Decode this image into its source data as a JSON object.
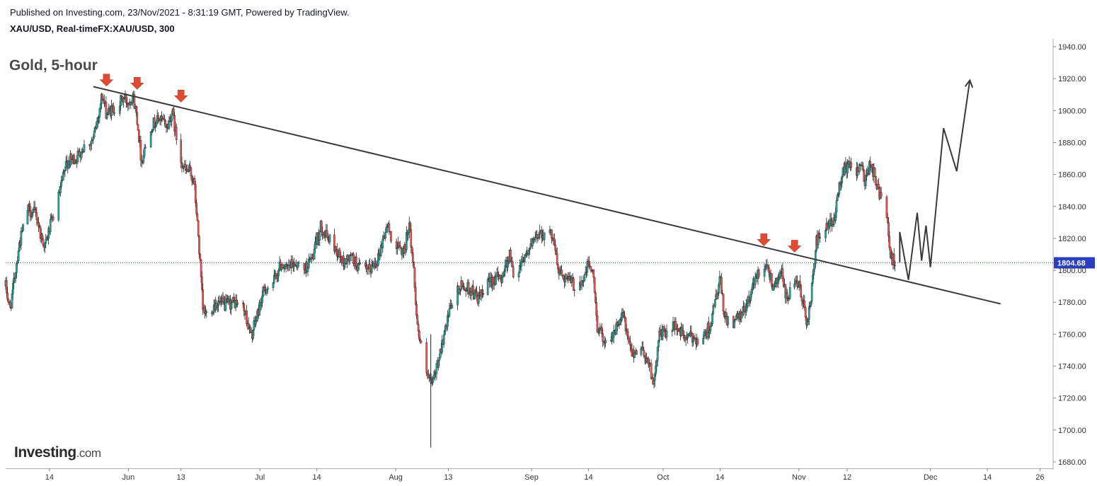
{
  "header": {
    "published": "Published on Investing.com, 23/Nov/2021 - 8:31:19 GMT, Powered by TradingView.",
    "symbol": "XAU/USD, Real-timeFX:XAU/USD, 300"
  },
  "logo": {
    "brand": "Investing",
    "suffix": ".com"
  },
  "colors": {
    "up": "#26a69a",
    "down": "#ef5350",
    "arrow": "#e24a33",
    "trend": "#3a3a3a",
    "price_line": "#2a3fbf"
  },
  "chart_data": {
    "type": "candlestick",
    "title": "Gold, 5-hour",
    "y_axis": {
      "position": "right",
      "range": [
        1676,
        1944
      ],
      "ticks": [
        1680.0,
        1700.0,
        1720.0,
        1740.0,
        1760.0,
        1780.0,
        1800.0,
        1820.0,
        1840.0,
        1860.0,
        1880.0,
        1900.0,
        1920.0,
        1940.0
      ]
    },
    "x_axis": {
      "start": "2021-05-04",
      "end": "2021-12-29",
      "ticks": [
        {
          "label": "14",
          "date": "2021-05-14"
        },
        {
          "label": "Jun",
          "date": "2021-06-01"
        },
        {
          "label": "13",
          "date": "2021-06-13"
        },
        {
          "label": "Jul",
          "date": "2021-07-01"
        },
        {
          "label": "14",
          "date": "2021-07-14"
        },
        {
          "label": "Aug",
          "date": "2021-08-01"
        },
        {
          "label": "13",
          "date": "2021-08-13"
        },
        {
          "label": "Sep",
          "date": "2021-09-01"
        },
        {
          "label": "14",
          "date": "2021-09-14"
        },
        {
          "label": "Oct",
          "date": "2021-10-01"
        },
        {
          "label": "14",
          "date": "2021-10-14"
        },
        {
          "label": "Nov",
          "date": "2021-11-01"
        },
        {
          "label": "12",
          "date": "2021-11-12"
        },
        {
          "label": "Dec",
          "date": "2021-12-01"
        },
        {
          "label": "14",
          "date": "2021-12-14"
        },
        {
          "label": "26",
          "date": "2021-12-26"
        }
      ]
    },
    "last_price": 1804.68,
    "last_price_label": "1804.68",
    "price_path": [
      [
        "2021-05-04",
        1790
      ],
      [
        "2021-05-05",
        1775
      ],
      [
        "2021-05-07",
        1815
      ],
      [
        "2021-05-09",
        1838
      ],
      [
        "2021-05-11",
        1835
      ],
      [
        "2021-05-12",
        1822
      ],
      [
        "2021-05-13",
        1815
      ],
      [
        "2021-05-14",
        1826
      ],
      [
        "2021-05-16",
        1845
      ],
      [
        "2021-05-18",
        1868
      ],
      [
        "2021-05-20",
        1870
      ],
      [
        "2021-05-22",
        1878
      ],
      [
        "2021-05-24",
        1882
      ],
      [
        "2021-05-25",
        1895
      ],
      [
        "2021-05-26",
        1910
      ],
      [
        "2021-05-27",
        1898
      ],
      [
        "2021-05-28",
        1900
      ],
      [
        "2021-05-30",
        1905
      ],
      [
        "2021-05-31",
        1908
      ],
      [
        "2021-06-01",
        1905
      ],
      [
        "2021-06-02",
        1910
      ],
      [
        "2021-06-03",
        1895
      ],
      [
        "2021-06-04",
        1868
      ],
      [
        "2021-06-06",
        1890
      ],
      [
        "2021-06-08",
        1895
      ],
      [
        "2021-06-10",
        1890
      ],
      [
        "2021-06-11",
        1900
      ],
      [
        "2021-06-12",
        1882
      ],
      [
        "2021-06-13",
        1870
      ],
      [
        "2021-06-14",
        1862
      ],
      [
        "2021-06-15",
        1862
      ],
      [
        "2021-06-16",
        1855
      ],
      [
        "2021-06-17",
        1820
      ],
      [
        "2021-06-18",
        1775
      ],
      [
        "2021-06-19",
        1772
      ],
      [
        "2021-06-21",
        1780
      ],
      [
        "2021-06-23",
        1778
      ],
      [
        "2021-06-25",
        1780
      ],
      [
        "2021-06-27",
        1778
      ],
      [
        "2021-06-28",
        1770
      ],
      [
        "2021-06-29",
        1758
      ],
      [
        "2021-06-30",
        1768
      ],
      [
        "2021-07-02",
        1788
      ],
      [
        "2021-07-04",
        1792
      ],
      [
        "2021-07-06",
        1805
      ],
      [
        "2021-07-07",
        1800
      ],
      [
        "2021-07-09",
        1805
      ],
      [
        "2021-07-11",
        1800
      ],
      [
        "2021-07-13",
        1808
      ],
      [
        "2021-07-15",
        1828
      ],
      [
        "2021-07-16",
        1822
      ],
      [
        "2021-07-18",
        1815
      ],
      [
        "2021-07-19",
        1810
      ],
      [
        "2021-07-20",
        1805
      ],
      [
        "2021-07-22",
        1808
      ],
      [
        "2021-07-24",
        1800
      ],
      [
        "2021-07-26",
        1800
      ],
      [
        "2021-07-28",
        1808
      ],
      [
        "2021-07-30",
        1828
      ],
      [
        "2021-08-01",
        1815
      ],
      [
        "2021-08-03",
        1812
      ],
      [
        "2021-08-04",
        1830
      ],
      [
        "2021-08-05",
        1804
      ],
      [
        "2021-08-06",
        1764
      ],
      [
        "2021-08-07",
        1748
      ],
      [
        "2021-08-08",
        1735
      ],
      [
        "2021-08-09",
        1728
      ],
      [
        "2021-08-10",
        1735
      ],
      [
        "2021-08-11",
        1748
      ],
      [
        "2021-08-12",
        1758
      ],
      [
        "2021-08-14",
        1782
      ],
      [
        "2021-08-16",
        1790
      ],
      [
        "2021-08-18",
        1788
      ],
      [
        "2021-08-20",
        1782
      ],
      [
        "2021-08-23",
        1795
      ],
      [
        "2021-08-25",
        1795
      ],
      [
        "2021-08-27",
        1810
      ],
      [
        "2021-08-28",
        1795
      ],
      [
        "2021-08-30",
        1808
      ],
      [
        "2021-09-01",
        1815
      ],
      [
        "2021-09-03",
        1825
      ],
      [
        "2021-09-04",
        1822
      ],
      [
        "2021-09-06",
        1822
      ],
      [
        "2021-09-07",
        1800
      ],
      [
        "2021-09-09",
        1795
      ],
      [
        "2021-09-11",
        1790
      ],
      [
        "2021-09-13",
        1795
      ],
      [
        "2021-09-14",
        1805
      ],
      [
        "2021-09-15",
        1798
      ],
      [
        "2021-09-16",
        1765
      ],
      [
        "2021-09-18",
        1755
      ],
      [
        "2021-09-20",
        1762
      ],
      [
        "2021-09-22",
        1772
      ],
      [
        "2021-09-23",
        1755
      ],
      [
        "2021-09-24",
        1748
      ],
      [
        "2021-09-26",
        1752
      ],
      [
        "2021-09-28",
        1740
      ],
      [
        "2021-09-29",
        1727
      ],
      [
        "2021-09-30",
        1760
      ],
      [
        "2021-10-02",
        1762
      ],
      [
        "2021-10-04",
        1765
      ],
      [
        "2021-10-06",
        1758
      ],
      [
        "2021-10-08",
        1758
      ],
      [
        "2021-10-10",
        1756
      ],
      [
        "2021-10-12",
        1768
      ],
      [
        "2021-10-14",
        1795
      ],
      [
        "2021-10-15",
        1770
      ],
      [
        "2021-10-17",
        1767
      ],
      [
        "2021-10-19",
        1772
      ],
      [
        "2021-10-21",
        1785
      ],
      [
        "2021-10-22",
        1795
      ],
      [
        "2021-10-24",
        1805
      ],
      [
        "2021-10-25",
        1802
      ],
      [
        "2021-10-26",
        1790
      ],
      [
        "2021-10-27",
        1795
      ],
      [
        "2021-10-28",
        1800
      ],
      [
        "2021-10-29",
        1782
      ],
      [
        "2021-10-31",
        1790
      ],
      [
        "2021-11-01",
        1790
      ],
      [
        "2021-11-02",
        1780
      ],
      [
        "2021-11-03",
        1765
      ],
      [
        "2021-11-04",
        1790
      ],
      [
        "2021-11-05",
        1818
      ],
      [
        "2021-11-07",
        1825
      ],
      [
        "2021-11-08",
        1828
      ],
      [
        "2021-11-09",
        1830
      ],
      [
        "2021-11-10",
        1850
      ],
      [
        "2021-11-11",
        1862
      ],
      [
        "2021-11-12",
        1865
      ],
      [
        "2021-11-14",
        1862
      ],
      [
        "2021-11-15",
        1868
      ],
      [
        "2021-11-16",
        1855
      ],
      [
        "2021-11-17",
        1865
      ],
      [
        "2021-11-18",
        1862
      ],
      [
        "2021-11-19",
        1850
      ],
      [
        "2021-11-20",
        1845
      ],
      [
        "2021-11-21",
        1838
      ],
      [
        "2021-11-22",
        1808
      ],
      [
        "2021-11-23",
        1805
      ]
    ],
    "trendline": {
      "start": [
        "2021-05-24",
        1915
      ],
      "end": [
        "2021-12-17",
        1779
      ]
    },
    "resistance_arrows": [
      {
        "date": "2021-05-27",
        "price": 1914
      },
      {
        "date": "2021-06-03",
        "price": 1912
      },
      {
        "date": "2021-06-13",
        "price": 1904
      },
      {
        "date": "2021-10-24",
        "price": 1814
      },
      {
        "date": "2021-10-31",
        "price": 1810
      }
    ],
    "projection_path": [
      [
        "2021-11-24",
        1805
      ],
      [
        "2021-11-24",
        1824
      ],
      [
        "2021-11-26",
        1794
      ],
      [
        "2021-11-28",
        1836
      ],
      [
        "2021-11-29",
        1806
      ],
      [
        "2021-11-30",
        1828
      ],
      [
        "2021-12-01",
        1802
      ],
      [
        "2021-12-04",
        1889
      ],
      [
        "2021-12-07",
        1862
      ],
      [
        "2021-12-10",
        1919
      ]
    ]
  }
}
